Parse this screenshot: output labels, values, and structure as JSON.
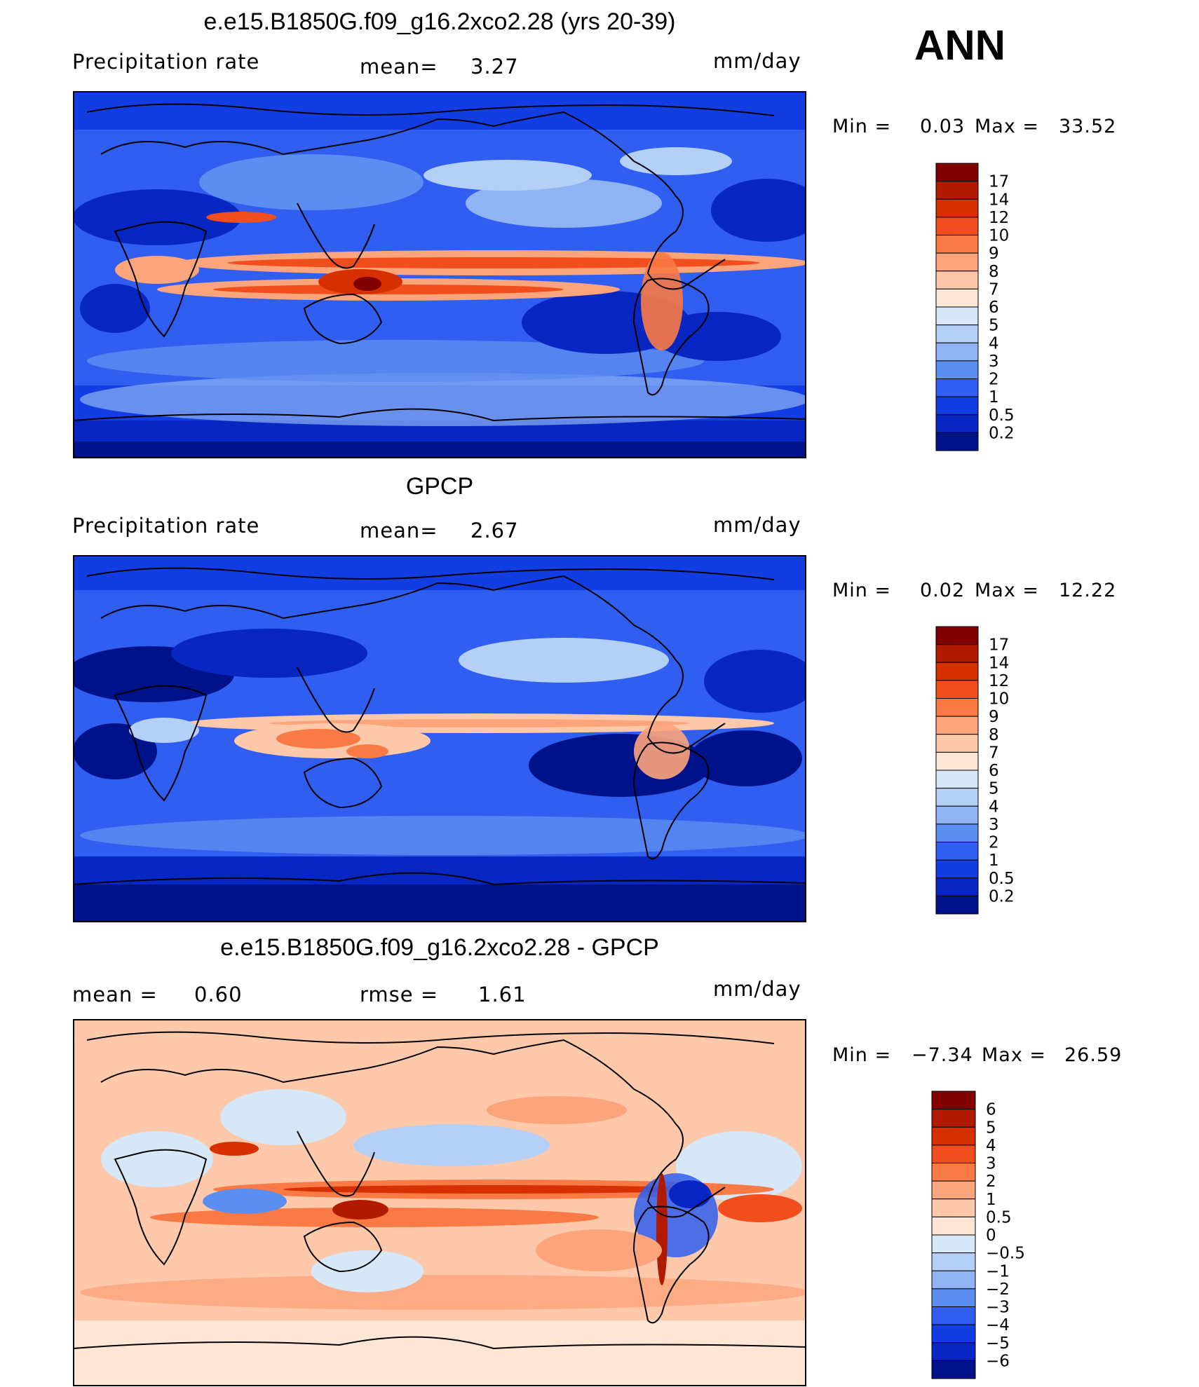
{
  "season": "ANN",
  "panels": [
    {
      "title": "e.e15.B1850G.f09_g16.2xco2.28 (yrs 20-39)",
      "left_label": "Precipitation  rate",
      "mid_label": "mean=",
      "mid_value": "3.27",
      "units": "mm/day",
      "min_label": "Min  =",
      "min_value": "0.03",
      "max_label": "Max  =",
      "max_value": "33.52",
      "colorbar": {
        "labels": [
          "17",
          "14",
          "12",
          "10",
          "9",
          "8",
          "7",
          "6",
          "5",
          "4",
          "3",
          "2",
          "1",
          "0.5",
          "0.2"
        ],
        "colors": [
          "#800000",
          "#b01a00",
          "#d63000",
          "#f04e1c",
          "#f97a45",
          "#fca47c",
          "#fdc9aa",
          "#fde6d6",
          "#d6e7f7",
          "#b4d0f7",
          "#8fb3f3",
          "#5c8df0",
          "#2f5ef0",
          "#123de3",
          "#0726c2",
          "#00128a"
        ]
      }
    },
    {
      "title": "GPCP",
      "left_label": "Precipitation  rate",
      "mid_label": "mean=",
      "mid_value": "2.67",
      "units": "mm/day",
      "min_label": "Min  =",
      "min_value": "0.02",
      "max_label": "Max  =",
      "max_value": "12.22",
      "colorbar": {
        "labels": [
          "17",
          "14",
          "12",
          "10",
          "9",
          "8",
          "7",
          "6",
          "5",
          "4",
          "3",
          "2",
          "1",
          "0.5",
          "0.2"
        ],
        "colors": [
          "#800000",
          "#b01a00",
          "#d63000",
          "#f04e1c",
          "#f97a45",
          "#fca47c",
          "#fdc9aa",
          "#fde6d6",
          "#d6e7f7",
          "#b4d0f7",
          "#8fb3f3",
          "#5c8df0",
          "#2f5ef0",
          "#123de3",
          "#0726c2",
          "#00128a"
        ]
      }
    },
    {
      "title": "e.e15.B1850G.f09_g16.2xco2.28 - GPCP",
      "left_label": "mean  =",
      "left_value": "0.60",
      "mid_label": "rmse  =",
      "mid_value": "1.61",
      "units": "mm/day",
      "min_label": "Min  =",
      "min_value": "−7.34",
      "max_label": "Max  =",
      "max_value": "26.59",
      "colorbar": {
        "labels": [
          "6",
          "5",
          "4",
          "3",
          "2",
          "1",
          "0.5",
          "0",
          "−0.5",
          "−1",
          "−2",
          "−3",
          "−4",
          "−5",
          "−6"
        ],
        "colors": [
          "#800000",
          "#b01a00",
          "#d63000",
          "#f04e1c",
          "#f97a45",
          "#fca47c",
          "#fdc9aa",
          "#fde6d6",
          "#d6e7f7",
          "#b4d0f7",
          "#8fb3f3",
          "#5c8df0",
          "#2f5ef0",
          "#123de3",
          "#0726c2",
          "#00128a"
        ]
      }
    }
  ]
}
